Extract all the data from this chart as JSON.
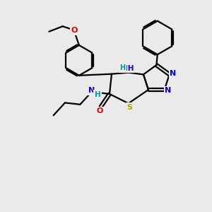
{
  "bg_color": "#eaeaea",
  "bond_color": "#000000",
  "N_color": "#0000ee",
  "O_color": "#dd0000",
  "S_color": "#aaaa00",
  "H_color": "#009999",
  "line_width": 1.6,
  "figsize": [
    3.0,
    3.0
  ],
  "dpi": 100,
  "xlim": [
    0,
    10
  ],
  "ylim": [
    0,
    10
  ]
}
